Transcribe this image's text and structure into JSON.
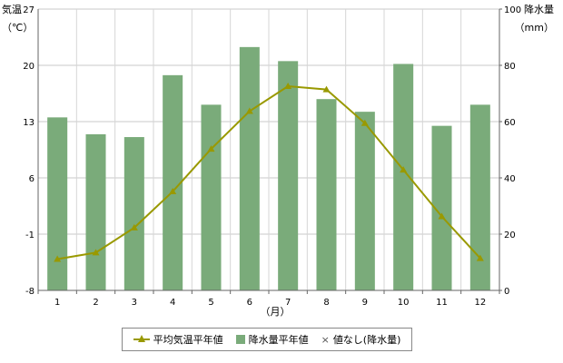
{
  "chart_data": {
    "type": "bar+line",
    "categories": [
      "1",
      "2",
      "3",
      "4",
      "5",
      "6",
      "7",
      "8",
      "9",
      "10",
      "11",
      "12"
    ],
    "xlabel": "（月）",
    "left_axis": {
      "label_line1": "気温",
      "label_line2": "（℃）",
      "range": [
        -8,
        27
      ],
      "ticks": [
        "27",
        "20",
        "13",
        "6",
        "-1",
        "-8"
      ],
      "tick_values": [
        27,
        20,
        13,
        6,
        -1,
        -8
      ]
    },
    "right_axis": {
      "label_line1": "降水量",
      "label_line2": "（mm）",
      "range": [
        0,
        100
      ],
      "ticks": [
        "100",
        "80",
        "60",
        "40",
        "20",
        "0"
      ],
      "tick_values": [
        100,
        80,
        60,
        40,
        20,
        0
      ]
    },
    "grid": true,
    "series": [
      {
        "name": "降水量平年値",
        "kind": "bar",
        "axis": "right",
        "color": "#7aab7a",
        "values": [
          61.5,
          55.5,
          54.5,
          76.5,
          66,
          86.5,
          81.5,
          68,
          63.5,
          80.5,
          58.5,
          66
        ]
      },
      {
        "name": "平均気温平年値",
        "kind": "line",
        "axis": "left",
        "color": "#999900",
        "values": [
          -4.1,
          -3.3,
          -0.2,
          4.3,
          9.6,
          14.3,
          17.4,
          17.0,
          12.8,
          7.0,
          1.2,
          -4.0
        ]
      }
    ],
    "legend": {
      "position": "bottom",
      "items": [
        "平均気温平年値",
        "降水量平年値",
        "×",
        "値なし(降水量)"
      ]
    }
  }
}
